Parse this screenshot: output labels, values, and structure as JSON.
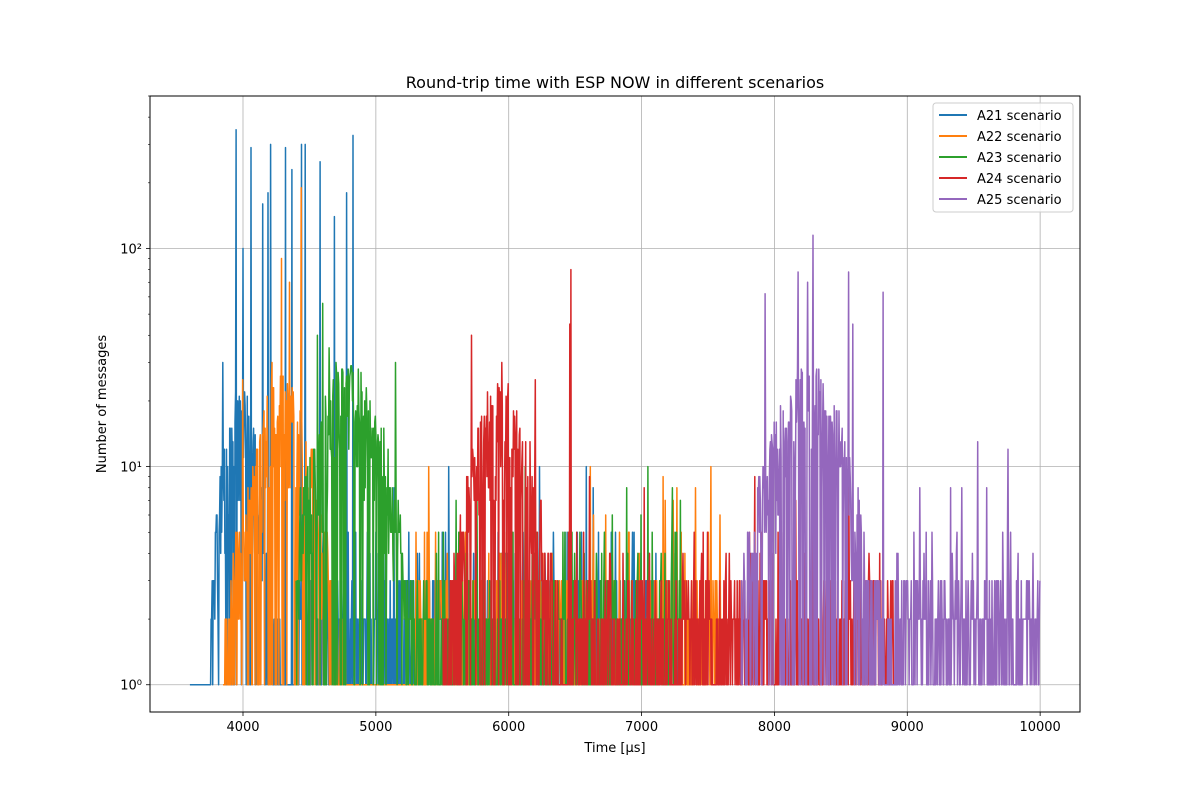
{
  "chart_data": {
    "type": "line",
    "title": "Round-trip time with ESP NOW in different scenarios",
    "xlabel": "Time [µs]",
    "ylabel": "Number of messages",
    "xlim": [
      3300,
      10300
    ],
    "ylim": [
      0.75,
      500
    ],
    "yscale": "log",
    "grid": true,
    "legend_position": "top-right",
    "x_ticks": [
      4000,
      5000,
      6000,
      7000,
      8000,
      9000,
      10000
    ],
    "x_tick_labels": [
      "4000",
      "5000",
      "6000",
      "7000",
      "8000",
      "9000",
      "10000"
    ],
    "y_ticks": [
      1,
      10,
      100
    ],
    "y_tick_labels": [
      "10⁰",
      "10¹",
      "10²"
    ],
    "series": [
      {
        "name": "A21 scenario",
        "color": "#1f77b4",
        "envelope": {
          "start": 3760,
          "end": 4420,
          "center": 3980,
          "width": 150,
          "peak": 20
        },
        "tail": {
          "end": 7300,
          "base": 2.5
        },
        "spikes": [
          [
            3950,
            350
          ],
          [
            4060,
            290
          ],
          [
            4150,
            160
          ],
          [
            4190,
            180
          ],
          [
            4210,
            300
          ],
          [
            4320,
            290
          ],
          [
            4370,
            230
          ],
          [
            4440,
            300
          ],
          [
            4470,
            300
          ],
          [
            4580,
            250
          ],
          [
            4690,
            140
          ],
          [
            4780,
            180
          ],
          [
            4830,
            330
          ],
          [
            3850,
            30
          ],
          [
            4000,
            100
          ]
        ]
      },
      {
        "name": "A22 scenario",
        "color": "#ff7f0e",
        "envelope": {
          "start": 3850,
          "end": 5300,
          "center": 4300,
          "width": 250,
          "peak": 22
        },
        "tail": {
          "end": 7600,
          "base": 2.5
        },
        "spikes": [
          [
            4440,
            190
          ],
          [
            4290,
            90
          ],
          [
            4350,
            70
          ],
          [
            4220,
            30
          ],
          [
            4000,
            25
          ]
        ]
      },
      {
        "name": "A23 scenario",
        "color": "#2ca02c",
        "envelope": {
          "start": 4400,
          "end": 5350,
          "center": 4800,
          "width": 300,
          "peak": 25
        },
        "tail": {
          "end": 7300,
          "base": 2.5
        },
        "spikes": [
          [
            4600,
            56
          ],
          [
            4560,
            40
          ],
          [
            4650,
            35
          ],
          [
            5150,
            30
          ],
          [
            4700,
            30
          ]
        ]
      },
      {
        "name": "A24 scenario",
        "color": "#d62728",
        "envelope": {
          "start": 5500,
          "end": 6450,
          "center": 5950,
          "width": 250,
          "peak": 22
        },
        "tail": {
          "end": 8900,
          "base": 2.5
        },
        "spikes": [
          [
            6470,
            80
          ],
          [
            6460,
            45
          ],
          [
            5720,
            40
          ],
          [
            5950,
            30
          ],
          [
            6200,
            25
          ]
        ]
      },
      {
        "name": "A25 scenario",
        "color": "#9467bd",
        "envelope": {
          "start": 7750,
          "end": 8900,
          "center": 8250,
          "width": 320,
          "peak": 25
        },
        "tail": {
          "end": 10000,
          "base": 2.5
        },
        "spikes": [
          [
            8290,
            115
          ],
          [
            8180,
            78
          ],
          [
            8560,
            78
          ],
          [
            7930,
            62
          ],
          [
            8820,
            63
          ],
          [
            8250,
            70
          ],
          [
            8590,
            45
          ],
          [
            9530,
            13
          ],
          [
            9760,
            12
          ],
          [
            9600,
            8
          ]
        ]
      }
    ]
  }
}
